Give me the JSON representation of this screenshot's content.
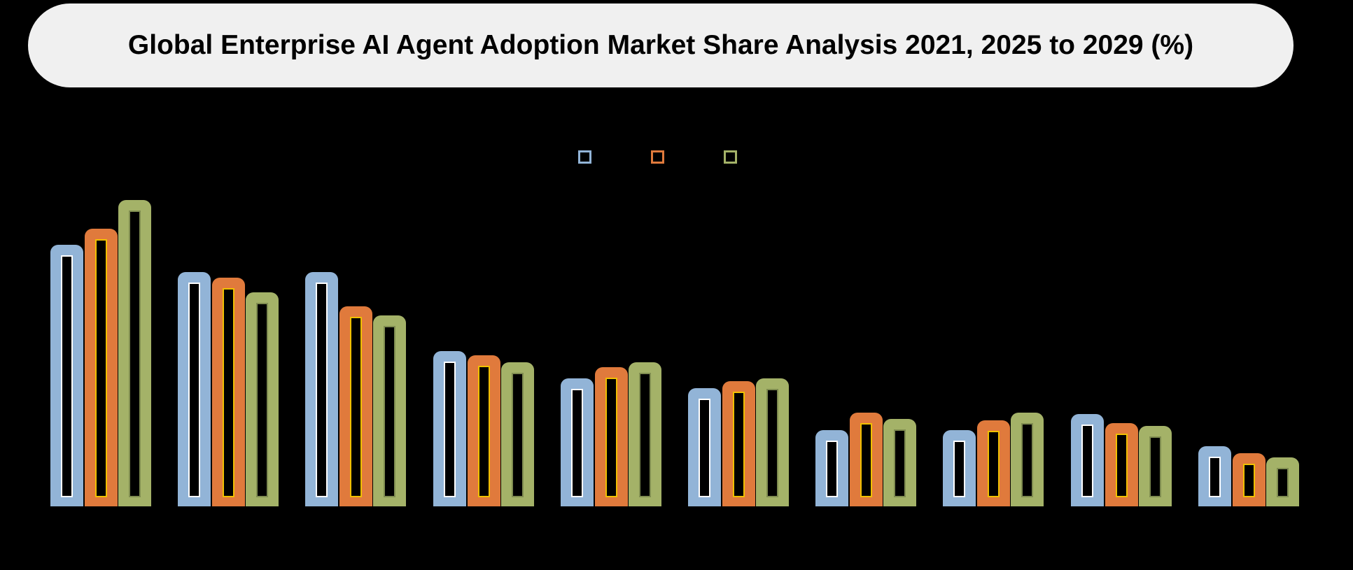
{
  "header": {
    "title": "Global Enterprise AI Agent Adoption Market Share Analysis 2021, 2025 to 2029 (%)"
  },
  "legend": {
    "items": [
      {
        "label": "",
        "color": "#92B4D7"
      },
      {
        "label": "",
        "color": "#E07A3C"
      },
      {
        "label": "",
        "color": "#A4B268"
      }
    ]
  },
  "chart_data": {
    "type": "bar",
    "title": "Global Enterprise AI Agent Adoption Market Share Analysis 2021, 2025 to 2029 (%)",
    "subtitle": "",
    "xlabel": "",
    "ylabel": "",
    "categories": [
      "",
      "",
      "",
      "",
      "",
      "",
      "",
      "",
      "",
      ""
    ],
    "series": [
      {
        "name": "",
        "color": "#92B4D7",
        "inner_stroke": "#FFFFFF",
        "values": [
          18.2,
          16.3,
          16.3,
          10.8,
          8.9,
          8.2,
          5.3,
          5.3,
          6.4,
          4.2
        ]
      },
      {
        "name": "",
        "color": "#E07A3C",
        "inner_stroke": "#F0C000",
        "values": [
          19.3,
          15.9,
          13.9,
          10.5,
          9.7,
          8.7,
          6.5,
          6.0,
          5.8,
          3.7
        ]
      },
      {
        "name": "",
        "color": "#A4B268",
        "inner_stroke": "#7F8C50",
        "values": [
          21.3,
          14.9,
          13.3,
          10.0,
          10.0,
          8.9,
          6.1,
          6.5,
          5.6,
          3.4
        ]
      }
    ],
    "ylim": [
      0,
      25
    ],
    "grid": false,
    "legend_position": "top-center",
    "axis_tick_labels_visible": false,
    "unit": "%"
  },
  "colors": {
    "background": "#000000",
    "title_pill": "#F0F0F0",
    "title_text": "#000000",
    "invisible_label_text": "#000000"
  }
}
